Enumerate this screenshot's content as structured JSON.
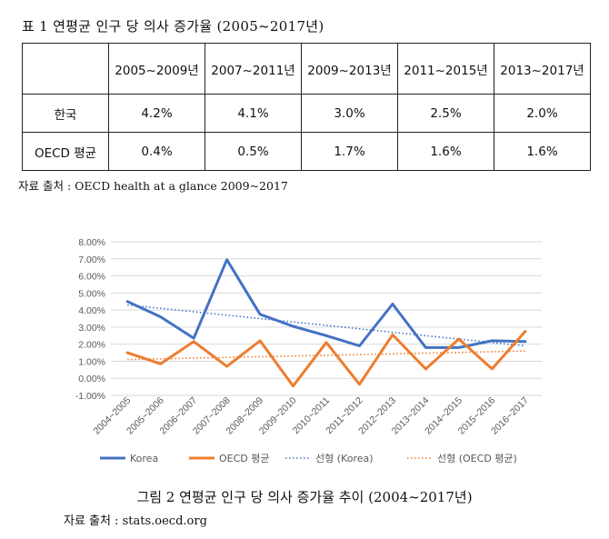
{
  "table": {
    "caption": "표 1 연평균 인구 당 의사 증가율 (2005~2017년)",
    "headers": [
      "",
      "2005~2009년",
      "2007~2011년",
      "2009~2013년",
      "2011~2015년",
      "2013~2017년"
    ],
    "rows": [
      {
        "label": "한국",
        "values": [
          "4.2%",
          "4.1%",
          "3.0%",
          "2.5%",
          "2.0%"
        ]
      },
      {
        "label": "OECD 평균",
        "values": [
          "0.4%",
          "0.5%",
          "1.7%",
          "1.6%",
          "1.6%"
        ]
      }
    ],
    "source": "자료 출처 : OECD health at a glance 2009~2017"
  },
  "chart_data": {
    "type": "line",
    "categories": [
      "2004~2005",
      "2005~2006",
      "2006~2007",
      "2007~2008",
      "2008~2009",
      "2009~2010",
      "2010~2011",
      "2011~2012",
      "2012~2013",
      "2013~2014",
      "2014~2015",
      "2015~2016",
      "2016~2017"
    ],
    "ylim": [
      -1,
      8
    ],
    "yticks": [
      "-1.00%",
      "0.00%",
      "1.00%",
      "2.00%",
      "3.00%",
      "4.00%",
      "5.00%",
      "6.00%",
      "7.00%",
      "8.00%"
    ],
    "grid": true,
    "legend_position": "bottom",
    "series": [
      {
        "name": "Korea",
        "color": "#4472c4",
        "values": [
          4.5,
          3.6,
          2.35,
          6.95,
          3.75,
          3.05,
          2.5,
          1.9,
          4.35,
          1.8,
          1.8,
          2.2,
          2.15
        ]
      },
      {
        "name": "OECD 평균",
        "color": "#ed7d31",
        "values": [
          1.5,
          0.85,
          2.15,
          0.7,
          2.2,
          -0.45,
          2.1,
          -0.35,
          2.55,
          0.55,
          2.3,
          0.55,
          2.75
        ]
      }
    ],
    "trendlines": [
      {
        "name": "선형 (Korea)",
        "color": "#4472c4",
        "start": 4.3,
        "end": 1.9
      },
      {
        "name": "선형 (OECD 평균)",
        "color": "#ed7d31",
        "start": 1.1,
        "end": 1.6
      }
    ]
  },
  "chart_caption": "그림 2 연평균 인구 당 의사 증가율 추이 (2004~2017년)",
  "chart_source": "자료 출처 : stats.oecd.org"
}
